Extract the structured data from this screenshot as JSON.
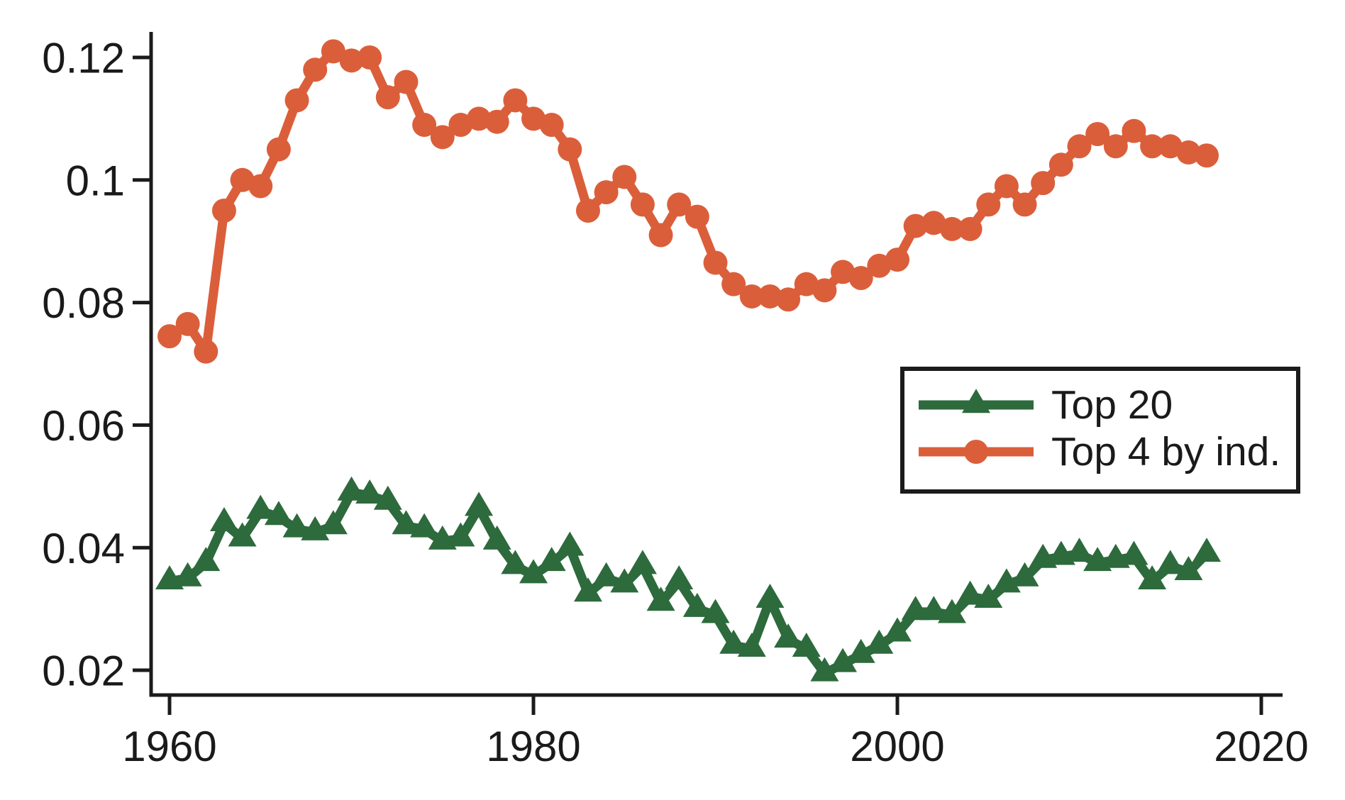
{
  "figure": {
    "background": "#ffffff",
    "axis_color": "#1b1b1b",
    "text_color": "#1a1a1a"
  },
  "chart_data": {
    "type": "line",
    "title": "",
    "xlabel": "",
    "ylabel": "",
    "grid": false,
    "xlim": [
      1959,
      2021.3
    ],
    "ylim": [
      0.0159,
      0.1243
    ],
    "x_ticks": [
      1960,
      1980,
      2000,
      2020
    ],
    "y_ticks": [
      0.02,
      0.04,
      0.06,
      0.08,
      0.1,
      0.12
    ],
    "y_tick_labels": [
      "0.02",
      "0.04",
      "0.06",
      "0.08",
      "0.1",
      "0.12"
    ],
    "legend_position": "inside-right-middle",
    "x": [
      1960,
      1961,
      1962,
      1963,
      1964,
      1965,
      1966,
      1967,
      1968,
      1969,
      1970,
      1971,
      1972,
      1973,
      1974,
      1975,
      1976,
      1977,
      1978,
      1979,
      1980,
      1981,
      1982,
      1983,
      1984,
      1985,
      1986,
      1987,
      1988,
      1989,
      1990,
      1991,
      1992,
      1993,
      1994,
      1995,
      1996,
      1997,
      1998,
      1999,
      2000,
      2001,
      2002,
      2003,
      2004,
      2005,
      2006,
      2007,
      2008,
      2009,
      2010,
      2011,
      2012,
      2013,
      2014,
      2015,
      2016,
      2017
    ],
    "series": [
      {
        "name": "Top 20",
        "marker": "triangle",
        "color": "#2d6a3c",
        "values": [
          0.0345,
          0.035,
          0.0375,
          0.044,
          0.0415,
          0.046,
          0.045,
          0.043,
          0.0425,
          0.0435,
          0.049,
          0.0485,
          0.0475,
          0.0435,
          0.043,
          0.041,
          0.0415,
          0.0465,
          0.041,
          0.037,
          0.0355,
          0.0375,
          0.04,
          0.0325,
          0.035,
          0.034,
          0.037,
          0.031,
          0.0345,
          0.03,
          0.029,
          0.024,
          0.0235,
          0.0315,
          0.025,
          0.0235,
          0.0195,
          0.021,
          0.0225,
          0.024,
          0.026,
          0.0295,
          0.0295,
          0.029,
          0.032,
          0.0315,
          0.034,
          0.035,
          0.038,
          0.0385,
          0.039,
          0.0375,
          0.038,
          0.0385,
          0.0345,
          0.037,
          0.036,
          0.039
        ]
      },
      {
        "name": "Top 4 by ind.",
        "marker": "circle",
        "color": "#db5e3a",
        "values": [
          0.0745,
          0.0765,
          0.072,
          0.095,
          0.1,
          0.099,
          0.105,
          0.113,
          0.118,
          0.121,
          0.1195,
          0.12,
          0.1135,
          0.116,
          0.109,
          0.107,
          0.109,
          0.11,
          0.1095,
          0.113,
          0.11,
          0.109,
          0.105,
          0.095,
          0.098,
          0.1005,
          0.096,
          0.091,
          0.096,
          0.094,
          0.0865,
          0.083,
          0.081,
          0.081,
          0.0805,
          0.083,
          0.082,
          0.085,
          0.084,
          0.086,
          0.087,
          0.0925,
          0.093,
          0.092,
          0.092,
          0.096,
          0.099,
          0.096,
          0.0995,
          0.1025,
          0.1055,
          0.1075,
          0.1055,
          0.108,
          0.1055,
          0.1055,
          0.1045,
          0.104
        ]
      }
    ]
  }
}
